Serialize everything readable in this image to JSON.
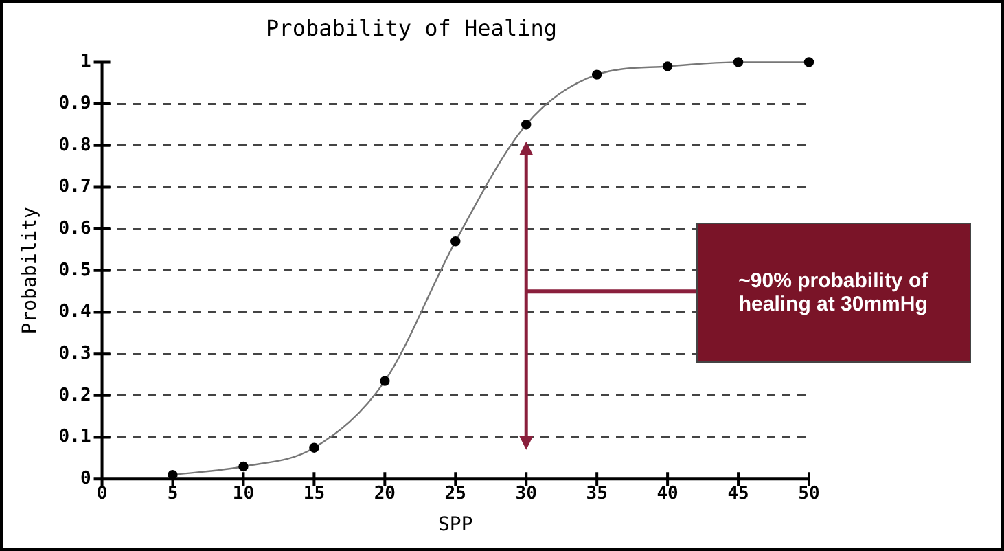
{
  "chart_data": {
    "type": "line",
    "title": "Probability of Healing",
    "xlabel": "SPP",
    "ylabel": "Probability",
    "x": [
      5,
      10,
      15,
      20,
      25,
      30,
      35,
      40,
      45,
      50
    ],
    "series": [
      {
        "color": "#000000",
        "values": [
          0.01,
          0.03,
          0.075,
          0.235,
          0.57,
          0.85,
          0.97,
          0.99,
          1.0,
          1.0
        ]
      }
    ],
    "xlim": [
      0,
      50
    ],
    "xticks": [
      0,
      5,
      10,
      15,
      20,
      25,
      30,
      35,
      40,
      45,
      50
    ],
    "ylim": [
      0,
      1
    ],
    "yticks": [
      0,
      0.1,
      0.2,
      0.3,
      0.4,
      0.5,
      0.6,
      0.7,
      0.8,
      0.9,
      1
    ],
    "grid": "y",
    "marker": "circle",
    "legend": false,
    "annotations": [
      "~90% probability of healing at 30mmHg"
    ]
  }
}
